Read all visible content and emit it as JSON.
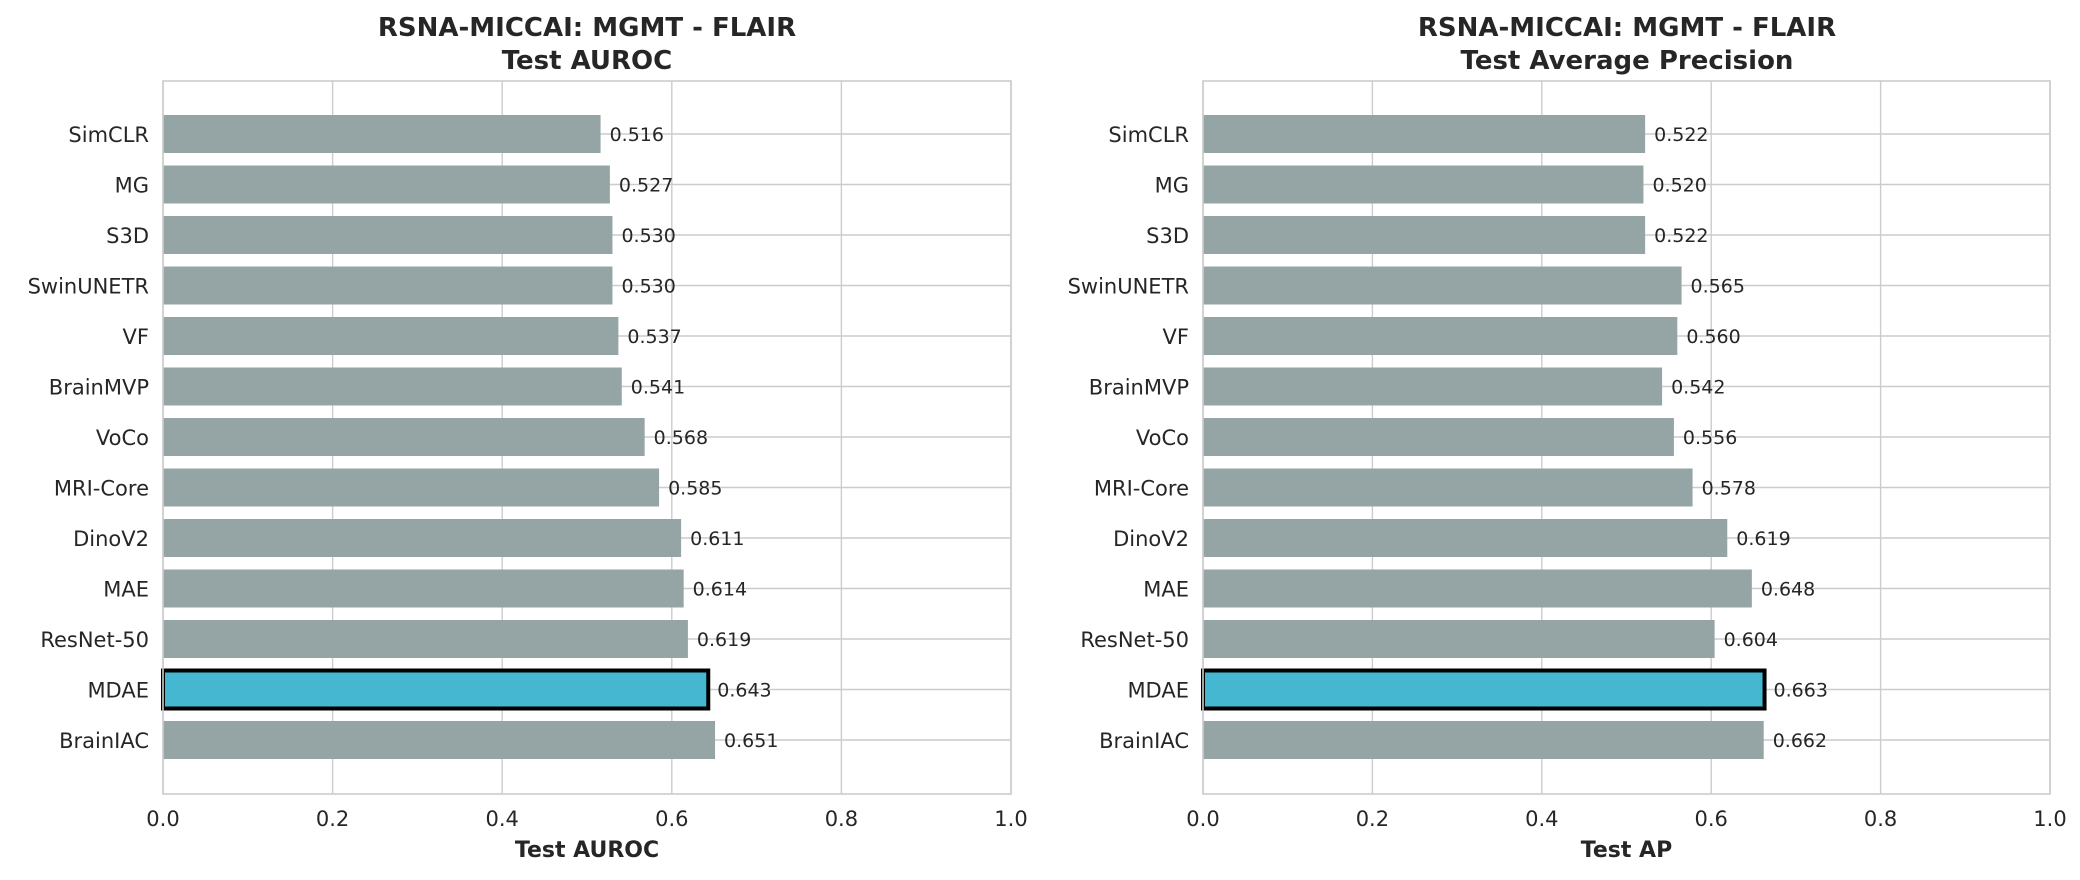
{
  "chart_data": [
    {
      "type": "bar",
      "orientation": "horizontal",
      "title": [
        "RSNA-MICCAI: MGMT - FLAIR",
        "Test AUROC"
      ],
      "xlabel": "Test AUROC",
      "ylabel": "",
      "xlim": [
        0,
        1.0
      ],
      "xticks": [
        "0.0",
        "0.2",
        "0.4",
        "0.6",
        "0.8",
        "1.0"
      ],
      "grid": true,
      "categories": [
        "SimCLR",
        "MG",
        "S3D",
        "SwinUNETR",
        "VF",
        "BrainMVP",
        "VoCo",
        "MRI-Core",
        "DinoV2",
        "MAE",
        "ResNet-50",
        "MDAE",
        "BrainIAC"
      ],
      "values": [
        0.516,
        0.527,
        0.53,
        0.53,
        0.537,
        0.541,
        0.568,
        0.585,
        0.611,
        0.614,
        0.619,
        0.643,
        0.651
      ],
      "value_labels": [
        "0.516",
        "0.527",
        "0.530",
        "0.530",
        "0.537",
        "0.541",
        "0.568",
        "0.585",
        "0.611",
        "0.614",
        "0.619",
        "0.643",
        "0.651"
      ],
      "highlight": "MDAE"
    },
    {
      "type": "bar",
      "orientation": "horizontal",
      "title": [
        "RSNA-MICCAI: MGMT - FLAIR",
        "Test Average Precision"
      ],
      "xlabel": "Test AP",
      "ylabel": "",
      "xlim": [
        0,
        1.0
      ],
      "xticks": [
        "0.0",
        "0.2",
        "0.4",
        "0.6",
        "0.8",
        "1.0"
      ],
      "grid": true,
      "categories": [
        "SimCLR",
        "MG",
        "S3D",
        "SwinUNETR",
        "VF",
        "BrainMVP",
        "VoCo",
        "MRI-Core",
        "DinoV2",
        "MAE",
        "ResNet-50",
        "MDAE",
        "BrainIAC"
      ],
      "values": [
        0.522,
        0.52,
        0.522,
        0.565,
        0.56,
        0.542,
        0.556,
        0.578,
        0.619,
        0.648,
        0.604,
        0.663,
        0.662
      ],
      "value_labels": [
        "0.522",
        "0.520",
        "0.522",
        "0.565",
        "0.560",
        "0.542",
        "0.556",
        "0.578",
        "0.619",
        "0.648",
        "0.604",
        "0.663",
        "0.662"
      ],
      "highlight": "MDAE"
    }
  ],
  "colors": {
    "bar": "#95a5a6",
    "highlight_bar": "#45b7d1",
    "highlight_edge": "#000000",
    "grid": "#cccccc",
    "text": "#262626"
  }
}
